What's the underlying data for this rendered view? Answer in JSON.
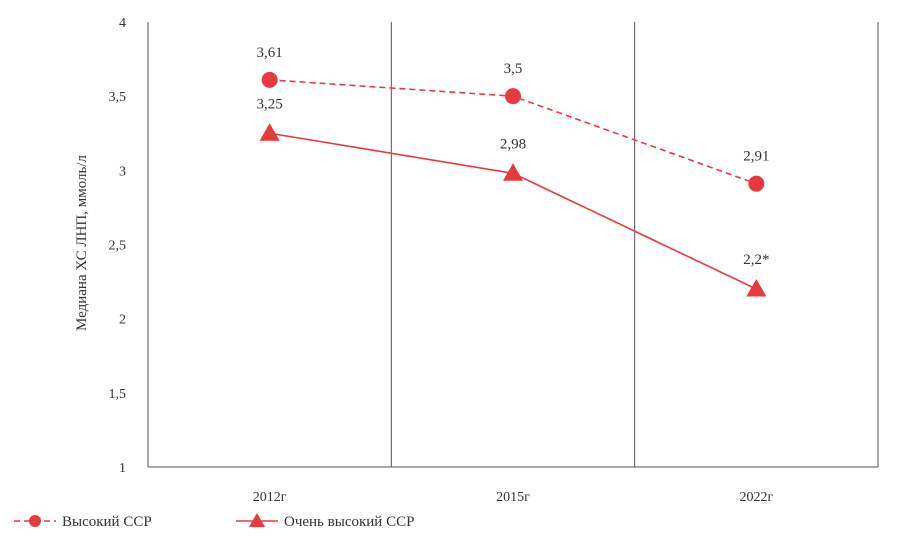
{
  "chart_data": {
    "type": "line",
    "categories": [
      "2012г",
      "2015г",
      "2022г"
    ],
    "ylabel": "Медиана ХС ЛНП, ммоль/л",
    "ylim": [
      1,
      4
    ],
    "yticks": [
      1,
      1.5,
      2,
      2.5,
      3,
      3.5,
      4
    ],
    "ytick_labels": [
      "1",
      "1,5",
      "2",
      "2,5",
      "3",
      "3,5",
      "4"
    ],
    "grid": "vertical separators between categories",
    "legend_position": "bottom-left",
    "series": [
      {
        "name": "Высокий ССР",
        "values": [
          3.61,
          3.5,
          2.91
        ],
        "labels": [
          "3,61",
          "3,5",
          "2,91"
        ],
        "line_style": "dashed",
        "marker": "circle",
        "color": "#e8393e"
      },
      {
        "name": "Очень высокий ССР",
        "values": [
          3.25,
          2.98,
          2.2
        ],
        "labels": [
          "3,25",
          "2,98",
          "2,2*"
        ],
        "line_style": "solid",
        "marker": "triangle",
        "color": "#e8393e"
      }
    ]
  }
}
